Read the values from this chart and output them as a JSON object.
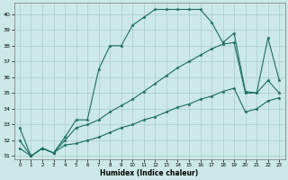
{
  "xlabel": "Humidex (Indice chaleur)",
  "bg_color": "#cce8e8",
  "line_color": "#1a6e5e",
  "grid_color": "#aacccc",
  "xlim": [
    -0.5,
    23.5
  ],
  "ylim": [
    30.8,
    40.7
  ],
  "yticks": [
    31,
    32,
    33,
    34,
    35,
    36,
    37,
    38,
    39,
    40
  ],
  "xticks": [
    0,
    1,
    2,
    3,
    4,
    5,
    6,
    7,
    8,
    9,
    10,
    11,
    12,
    13,
    14,
    15,
    16,
    17,
    18,
    19,
    20,
    21,
    22,
    23
  ],
  "series1_y": [
    32.8,
    31.0,
    31.5,
    31.2,
    32.2,
    33.3,
    33.3,
    36.5,
    38.0,
    38.0,
    39.3,
    39.8,
    40.3,
    40.3,
    40.3,
    40.3,
    40.3,
    39.5,
    38.2,
    38.8,
    35.1,
    35.0,
    38.5,
    35.8
  ],
  "series2_y": [
    32.0,
    31.0,
    31.5,
    31.2,
    32.0,
    32.8,
    33.0,
    33.3,
    33.8,
    34.2,
    34.6,
    35.1,
    35.6,
    36.1,
    36.6,
    37.0,
    37.4,
    37.8,
    38.1,
    38.2,
    35.0,
    35.0,
    35.8,
    35.0
  ],
  "series3_y": [
    31.5,
    31.0,
    31.5,
    31.2,
    31.7,
    31.8,
    32.0,
    32.2,
    32.5,
    32.8,
    33.0,
    33.3,
    33.5,
    33.8,
    34.1,
    34.3,
    34.6,
    34.8,
    35.1,
    35.3,
    33.8,
    34.0,
    34.5,
    34.7
  ]
}
